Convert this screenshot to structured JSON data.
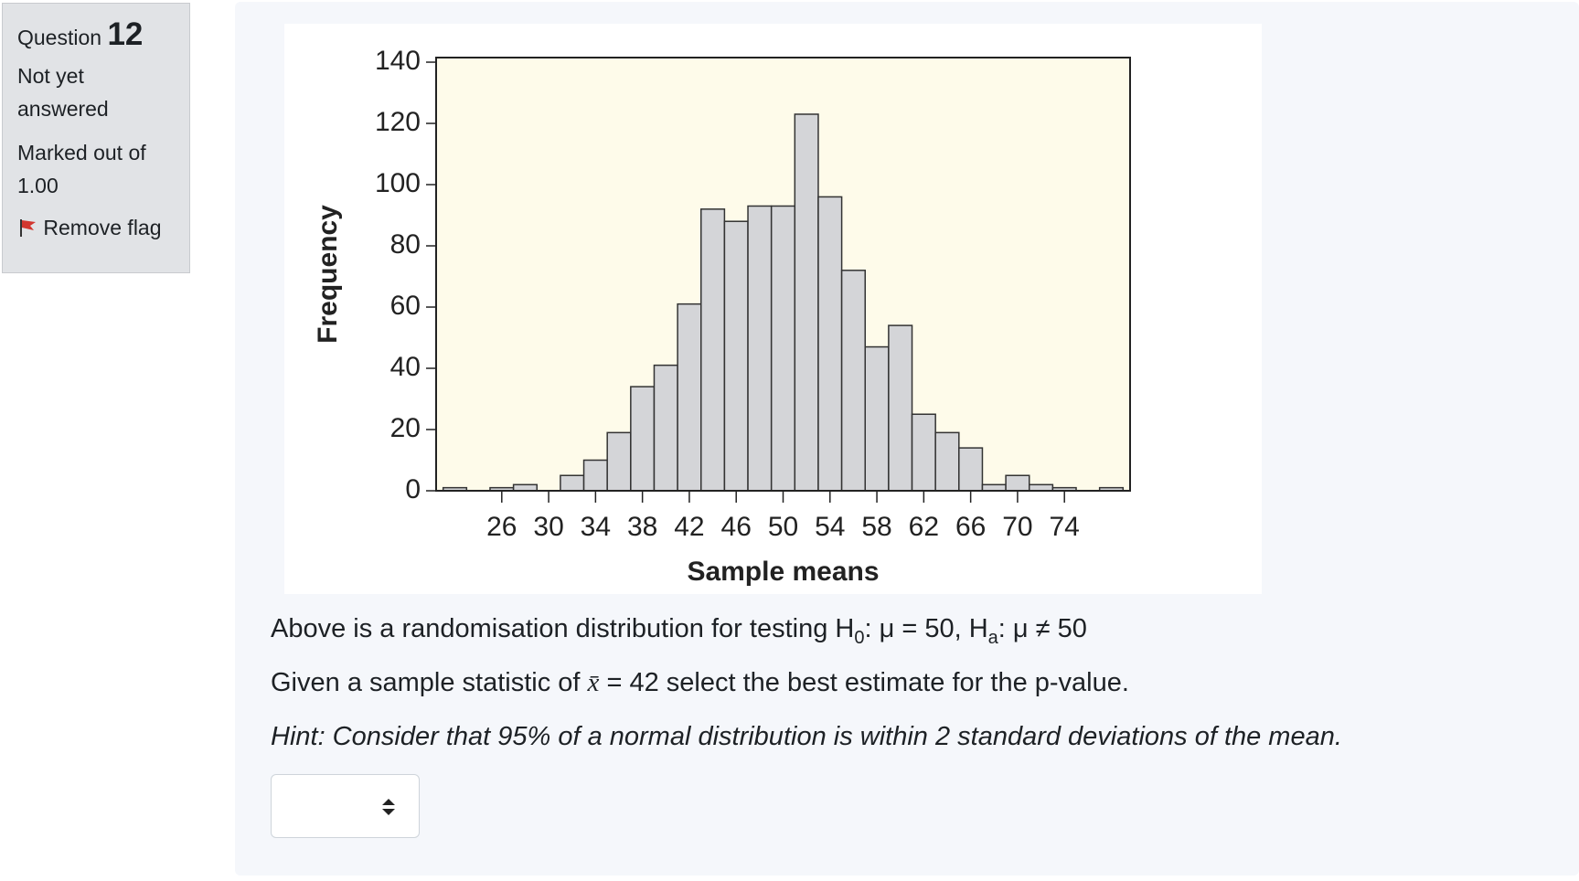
{
  "sidebar": {
    "question_label": "Question",
    "question_number": "12",
    "status": "Not yet answered",
    "marks": "Marked out of 1.00",
    "flag": "Remove flag"
  },
  "chart_data": {
    "type": "histogram",
    "bins": [
      21,
      23,
      25,
      27,
      29,
      31,
      33,
      35,
      37,
      39,
      41,
      43,
      45,
      47,
      49,
      51,
      53,
      55,
      57,
      59,
      61,
      63,
      65,
      67,
      69,
      71,
      73,
      75,
      77,
      79
    ],
    "values": [
      1,
      0,
      1,
      2,
      0,
      5,
      10,
      19,
      34,
      41,
      61,
      92,
      88,
      93,
      93,
      123,
      96,
      72,
      47,
      54,
      25,
      19,
      14,
      2,
      5,
      2,
      1,
      0,
      1
    ],
    "color": "#d4d5d8",
    "background": "#fefbea",
    "xlim": [
      20.4,
      79.6
    ],
    "xticks": [
      26,
      30,
      34,
      38,
      42,
      46,
      50,
      54,
      58,
      62,
      66,
      70,
      74
    ],
    "ylim": [
      0,
      141.5
    ],
    "yticks": [
      0,
      20,
      40,
      60,
      80,
      100,
      120,
      140
    ],
    "x_label": "Sample means",
    "y_label": "Frequency"
  },
  "question": {
    "line1": [
      "Above is a randomisation distribution for testing H",
      "0",
      ": μ = 50, H",
      "a",
      ": μ ≠ 50"
    ],
    "line2": [
      "Given a sample statistic of ",
      "x̄",
      " = 42 select the best estimate for the p-value."
    ],
    "hint": "Hint: Consider that 95% of a normal distribution is within 2 standard deviations of the mean."
  }
}
